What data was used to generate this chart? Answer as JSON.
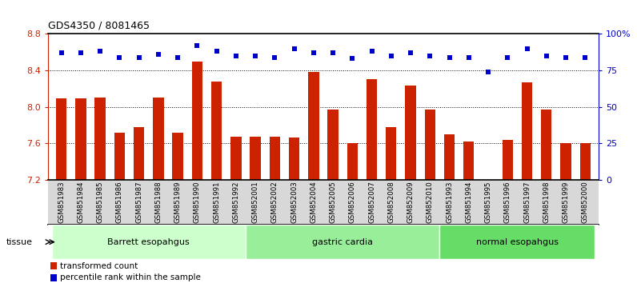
{
  "title": "GDS4350 / 8081465",
  "samples": [
    "GSM851983",
    "GSM851984",
    "GSM851985",
    "GSM851986",
    "GSM851987",
    "GSM851988",
    "GSM851989",
    "GSM851990",
    "GSM851991",
    "GSM851992",
    "GSM852001",
    "GSM852002",
    "GSM852003",
    "GSM852004",
    "GSM852005",
    "GSM852006",
    "GSM852007",
    "GSM852008",
    "GSM852009",
    "GSM852010",
    "GSM851993",
    "GSM851994",
    "GSM851995",
    "GSM851996",
    "GSM851997",
    "GSM851998",
    "GSM851999",
    "GSM852000"
  ],
  "bar_values": [
    8.09,
    8.09,
    8.1,
    7.72,
    7.78,
    8.1,
    7.72,
    8.5,
    8.28,
    7.67,
    7.67,
    7.67,
    7.66,
    8.38,
    7.97,
    7.6,
    8.3,
    7.78,
    8.23,
    7.97,
    7.7,
    7.62,
    7.2,
    7.64,
    8.27,
    7.97,
    7.6,
    7.6
  ],
  "percentile_values": [
    87,
    87,
    88,
    84,
    84,
    86,
    84,
    92,
    88,
    85,
    85,
    84,
    90,
    87,
    87,
    83,
    88,
    85,
    87,
    85,
    84,
    84,
    74,
    84,
    90,
    85,
    84,
    84
  ],
  "groups": [
    {
      "label": "Barrett esopahgus",
      "start": 0,
      "end": 9,
      "color": "#ccffcc"
    },
    {
      "label": "gastric cardia",
      "start": 10,
      "end": 19,
      "color": "#99ee99"
    },
    {
      "label": "normal esopahgus",
      "start": 20,
      "end": 27,
      "color": "#66dd66"
    }
  ],
  "ylim_left": [
    7.2,
    8.8
  ],
  "ylim_right": [
    0,
    100
  ],
  "yticks_left": [
    7.2,
    7.6,
    8.0,
    8.4,
    8.8
  ],
  "yticks_right": [
    0,
    25,
    50,
    75,
    100
  ],
  "ytick_labels_right": [
    "0",
    "25",
    "50",
    "75",
    "100%"
  ],
  "bar_color": "#cc2200",
  "dot_color": "#0000cc",
  "background_color": "#ffffff",
  "tick_area_color": "#d8d8d8",
  "grid_yticks": [
    7.6,
    8.0,
    8.4
  ]
}
